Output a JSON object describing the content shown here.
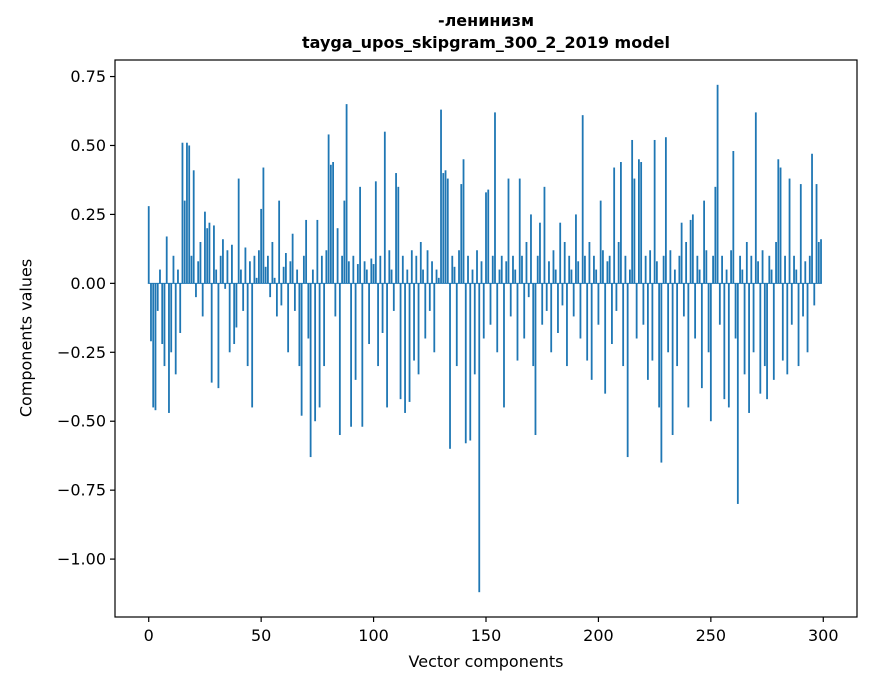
{
  "chart_data": {
    "type": "bar",
    "title_line1": "-ленинизм",
    "title_line2": "tayga_upos_skipgram_300_2_2019 model",
    "xlabel": "Vector components",
    "ylabel": "Components values",
    "xlim": [
      -15,
      315
    ],
    "ylim": [
      -1.21,
      0.81
    ],
    "x_ticks": [
      0,
      50,
      100,
      150,
      200,
      250,
      300
    ],
    "x_tick_labels": [
      "0",
      "50",
      "100",
      "150",
      "200",
      "250",
      "300"
    ],
    "y_ticks": [
      0.75,
      0.5,
      0.25,
      0.0,
      -0.25,
      -0.5,
      -0.75,
      -1.0
    ],
    "y_tick_labels": [
      "0.75",
      "0.50",
      "0.25",
      "0.00",
      "−0.25",
      "−0.50",
      "−0.75",
      "−1.00"
    ],
    "grid": false,
    "legend": null,
    "bar_color": "#1f77b4",
    "values": [
      0.28,
      -0.21,
      -0.45,
      -0.46,
      -0.1,
      0.05,
      -0.22,
      -0.3,
      0.17,
      -0.47,
      -0.25,
      0.1,
      -0.33,
      0.05,
      -0.18,
      0.51,
      0.3,
      0.51,
      0.5,
      0.1,
      0.41,
      -0.05,
      0.08,
      0.15,
      -0.12,
      0.26,
      0.2,
      0.22,
      -0.36,
      0.21,
      0.05,
      -0.38,
      0.1,
      0.16,
      -0.02,
      0.12,
      -0.25,
      0.14,
      -0.22,
      -0.16,
      0.38,
      0.05,
      -0.1,
      0.13,
      -0.3,
      0.08,
      -0.45,
      0.1,
      0.02,
      0.12,
      0.27,
      0.42,
      0.06,
      0.1,
      -0.05,
      0.15,
      0.02,
      -0.12,
      0.3,
      -0.08,
      0.06,
      0.11,
      -0.25,
      0.08,
      0.18,
      -0.1,
      0.05,
      -0.3,
      -0.48,
      0.1,
      0.23,
      -0.2,
      -0.63,
      0.05,
      -0.5,
      0.23,
      -0.45,
      0.1,
      -0.3,
      0.12,
      0.54,
      0.43,
      0.44,
      -0.12,
      0.2,
      -0.55,
      0.1,
      0.3,
      0.65,
      0.08,
      -0.52,
      0.1,
      -0.35,
      0.07,
      0.35,
      -0.52,
      0.08,
      0.05,
      -0.22,
      0.09,
      0.07,
      0.37,
      -0.3,
      0.1,
      -0.18,
      0.55,
      -0.45,
      0.12,
      0.05,
      -0.1,
      0.4,
      0.35,
      -0.42,
      0.1,
      -0.47,
      0.05,
      -0.43,
      0.12,
      -0.28,
      0.1,
      -0.33,
      0.15,
      0.05,
      -0.2,
      0.12,
      -0.1,
      0.08,
      -0.25,
      0.05,
      0.02,
      0.63,
      0.4,
      0.41,
      0.38,
      -0.6,
      0.1,
      0.06,
      -0.3,
      0.12,
      0.36,
      0.45,
      -0.58,
      0.1,
      -0.57,
      0.05,
      -0.33,
      0.12,
      -1.12,
      0.08,
      -0.2,
      0.33,
      0.34,
      -0.15,
      0.1,
      0.62,
      -0.25,
      0.05,
      0.1,
      -0.45,
      0.08,
      0.38,
      -0.12,
      0.1,
      0.05,
      -0.28,
      0.38,
      0.1,
      -0.2,
      0.15,
      -0.05,
      0.25,
      -0.3,
      -0.55,
      0.1,
      0.22,
      -0.15,
      0.35,
      -0.1,
      0.08,
      -0.25,
      0.12,
      0.05,
      -0.18,
      0.22,
      -0.08,
      0.15,
      -0.3,
      0.1,
      0.05,
      -0.12,
      0.25,
      0.08,
      -0.2,
      0.61,
      0.1,
      -0.28,
      0.15,
      -0.35,
      0.1,
      0.05,
      -0.15,
      0.3,
      0.12,
      -0.4,
      0.08,
      0.1,
      -0.22,
      0.42,
      -0.1,
      0.15,
      0.44,
      -0.3,
      0.1,
      -0.63,
      0.05,
      0.52,
      0.38,
      -0.2,
      0.45,
      0.44,
      -0.15,
      0.1,
      -0.35,
      0.12,
      -0.28,
      0.52,
      0.08,
      -0.45,
      -0.65,
      0.1,
      0.53,
      -0.25,
      0.12,
      -0.55,
      0.05,
      -0.3,
      0.1,
      0.22,
      -0.12,
      0.15,
      -0.45,
      0.23,
      0.25,
      -0.2,
      0.1,
      0.05,
      -0.38,
      0.3,
      0.12,
      -0.25,
      -0.5,
      0.1,
      0.35,
      0.72,
      -0.15,
      0.1,
      -0.42,
      0.05,
      -0.45,
      0.12,
      0.48,
      -0.2,
      -0.8,
      0.1,
      0.05,
      -0.33,
      0.15,
      -0.47,
      0.1,
      -0.25,
      0.62,
      0.08,
      -0.4,
      0.12,
      -0.3,
      -0.42,
      0.1,
      0.05,
      -0.35,
      0.15,
      0.45,
      0.42,
      -0.28,
      0.1,
      -0.33,
      0.38,
      -0.15,
      0.1,
      0.05,
      -0.3,
      0.36,
      -0.12,
      0.08,
      -0.25,
      0.1,
      0.47,
      -0.08,
      0.36,
      0.15,
      0.16
    ]
  }
}
